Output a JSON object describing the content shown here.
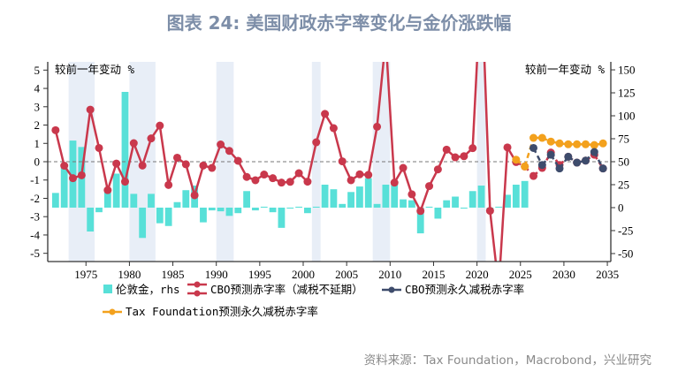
{
  "title": "图表 24: 美国财政赤字率变化与金价涨跌幅",
  "source": "资料来源：Tax Foundation，Macrobond，兴业研究",
  "colors": {
    "bars": "#58e0d8",
    "cbo_no_extension": "#c9384c",
    "cbo_permanent": "#3e4c6c",
    "tax_foundation": "#f3a11d",
    "shade": "#e8eef7",
    "title": "#7d8ea8"
  },
  "chart_data": {
    "type": "bar+line",
    "left_axis_label": "较前一年变动 %",
    "right_axis_label": "较前一年变动 %",
    "xlim": [
      1970.6,
      2035.4
    ],
    "ylim_left": [
      -5.45,
      5.45
    ],
    "ylim_right": [
      -58.7,
      158.7
    ],
    "x_ticks": [
      1975,
      1980,
      1985,
      1990,
      1995,
      2000,
      2005,
      2010,
      2015,
      2020,
      2025,
      2030,
      2035
    ],
    "y_ticks_left": [
      5,
      4,
      3,
      2,
      1,
      0,
      -1,
      -2,
      -3,
      -4,
      -5
    ],
    "y_ticks_right": [
      150,
      125,
      100,
      75,
      50,
      25,
      0,
      -25,
      -50
    ],
    "recessions": [
      [
        1973,
        1976
      ],
      [
        1980,
        1983
      ],
      [
        1990,
        1992
      ],
      [
        2001,
        2002
      ],
      [
        2008,
        2010
      ],
      [
        2020,
        2021
      ]
    ],
    "zero_line": "dashed at 0 (left)",
    "legend": {
      "placement": "bottom",
      "entries": [
        "伦敦金，rhs",
        "CBO预测赤字率（减税不延期）",
        "CBO预测永久减税赤字率",
        "Tax Foundation预测永久减税赤字率"
      ]
    },
    "series": [
      {
        "name": "伦敦金，rhs",
        "type": "bar",
        "axis": "right",
        "start_year": 1971,
        "values": [
          16,
          46,
          73,
          66,
          -26,
          -5,
          21,
          37,
          126,
          15,
          -33,
          15,
          -17,
          -20,
          6,
          19,
          24,
          -16,
          -3,
          -4,
          -9,
          -6,
          18,
          -3,
          1,
          -5,
          -22,
          -1,
          1,
          -6,
          1,
          25,
          20,
          4,
          17,
          23,
          32,
          4,
          25,
          26,
          9,
          8,
          -28,
          1,
          -12,
          8,
          12,
          -1,
          18,
          24,
          -4,
          1,
          14,
          25,
          29
        ]
      },
      {
        "name": "CBO预测赤字率（减税不延期）",
        "type": "line",
        "axis": "left",
        "start_year": 1971,
        "values": [
          1.72,
          -0.22,
          -0.9,
          -0.74,
          2.84,
          0.75,
          -1.55,
          -0.1,
          -1.09,
          1.01,
          -0.21,
          1.27,
          1.97,
          -1.27,
          0.22,
          -0.14,
          -1.83,
          -0.21,
          -0.34,
          0.94,
          0.59,
          0.05,
          -0.83,
          -1.01,
          -0.7,
          -0.9,
          -1.14,
          -1.1,
          -0.63,
          -1.09,
          1.06,
          2.61,
          1.83,
          0.02,
          -1.01,
          -0.69,
          -0.72,
          1.91,
          6.7,
          -1.14,
          -0.34,
          -1.78,
          -2.69,
          -1.33,
          -0.42,
          0.66,
          0.24,
          0.3,
          0.74,
          10.1,
          -2.68,
          -6.9,
          0.78,
          -0.02,
          -0.26,
          -0.78,
          -0.34,
          0.5,
          -0.18,
          0.27,
          -0.05,
          0.06,
          0.38,
          -0.37
        ]
      },
      {
        "name": "CBO预测永久减税赤字率",
        "type": "line",
        "axis": "left",
        "start_year": 2026,
        "values": [
          0.75,
          -0.18,
          0.38,
          -0.37,
          0.27,
          -0.05,
          0.06,
          0.53,
          -0.37
        ]
      },
      {
        "name": "Tax Foundation预测永久减税赤字率",
        "type": "line",
        "axis": "left",
        "start_year": 2024,
        "values": [
          0.11,
          -0.26,
          1.3,
          1.3,
          1.1,
          1.0,
          0.95,
          0.95,
          0.95,
          0.91,
          1.0
        ]
      }
    ]
  }
}
